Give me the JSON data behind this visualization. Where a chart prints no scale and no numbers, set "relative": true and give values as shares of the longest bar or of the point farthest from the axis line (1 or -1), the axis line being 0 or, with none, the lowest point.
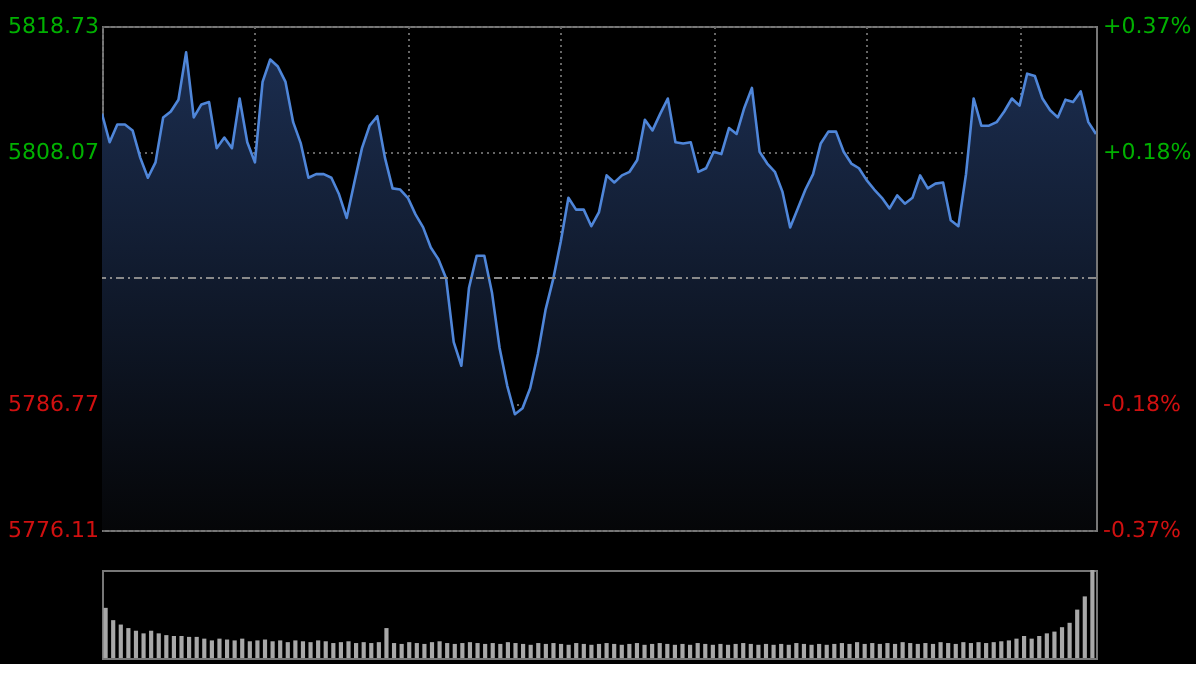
{
  "chart_data": [
    {
      "type": "area",
      "line_style": "solid",
      "marker": "none",
      "grid": true,
      "categories": [
        null,
        null,
        null,
        null,
        null,
        null,
        null,
        null,
        null,
        null,
        null,
        null,
        null,
        null,
        null,
        null,
        null,
        null,
        null,
        null,
        null,
        null,
        null,
        null,
        null,
        null,
        null,
        null,
        null,
        null,
        null,
        null,
        null,
        null,
        null,
        null,
        null,
        null,
        null,
        null,
        null,
        null,
        null,
        null,
        null,
        null,
        null,
        null,
        null,
        null,
        null,
        null,
        null,
        null,
        null,
        null,
        null,
        null,
        null,
        null,
        null,
        null,
        null,
        null,
        null,
        null,
        null,
        null,
        null,
        null,
        null,
        null,
        null,
        null,
        null,
        null,
        null,
        null,
        null,
        null,
        null,
        null,
        null,
        null,
        null,
        null,
        null,
        null,
        null,
        null,
        null,
        null,
        null,
        null,
        null,
        null,
        null,
        null,
        null,
        null,
        null,
        null,
        null,
        null,
        null,
        null,
        null,
        null,
        null,
        null,
        null,
        null,
        null,
        null,
        null,
        null,
        null,
        null,
        null,
        null,
        null,
        null,
        null,
        null,
        null,
        null,
        null,
        null,
        null,
        null,
        null
      ],
      "series": [
        {
          "color": "#4f86d9",
          "values": [
            5811.3,
            5808.9,
            5810.4,
            5810.4,
            5809.9,
            5807.6,
            5805.9,
            5807.2,
            5811.0,
            5811.5,
            5812.5,
            5816.5,
            5811.0,
            5812.1,
            5812.3,
            5808.4,
            5809.3,
            5808.4,
            5812.6,
            5808.9,
            5807.2,
            5814.0,
            5815.9,
            5815.3,
            5814.0,
            5810.6,
            5808.8,
            5805.9,
            5806.2,
            5806.2,
            5805.9,
            5804.5,
            5802.5,
            5805.5,
            5808.4,
            5810.3,
            5811.1,
            5807.6,
            5805.0,
            5804.9,
            5804.2,
            5802.8,
            5801.7,
            5800.0,
            5799.0,
            5797.4,
            5792.0,
            5790.0,
            5796.6,
            5799.3,
            5799.3,
            5796.2,
            5791.5,
            5788.3,
            5785.9,
            5786.4,
            5788.1,
            5791.0,
            5794.7,
            5797.3,
            5800.5,
            5804.2,
            5803.2,
            5803.2,
            5801.8,
            5803.0,
            5806.1,
            5805.5,
            5806.1,
            5806.4,
            5807.4,
            5810.8,
            5809.9,
            5811.3,
            5812.6,
            5808.9,
            5808.8,
            5808.9,
            5806.4,
            5806.7,
            5808.1,
            5807.9,
            5810.1,
            5809.6,
            5811.8,
            5813.5,
            5808.1,
            5807.1,
            5806.4,
            5804.7,
            5801.7,
            5803.3,
            5804.9,
            5806.2,
            5808.8,
            5809.8,
            5809.8,
            5808.1,
            5807.1,
            5806.7,
            5805.7,
            5804.9,
            5804.2,
            5803.3,
            5804.4,
            5803.7,
            5804.2,
            5806.1,
            5805.0,
            5805.4,
            5805.5,
            5802.3,
            5801.8,
            5806.2,
            5812.6,
            5810.3,
            5810.3,
            5810.6,
            5811.5,
            5812.6,
            5812.0,
            5814.7,
            5814.5,
            5812.6,
            5811.6,
            5811.0,
            5812.5,
            5812.3,
            5813.2,
            5810.6,
            5809.6
          ]
        }
      ],
      "ylim": [
        5776.11,
        5818.73
      ],
      "yticks": [
        5776.11,
        5786.77,
        5808.07,
        5818.73
      ],
      "y2lim": [
        -0.368,
        0.368
      ],
      "y2ticks": [
        {
          "value": -0.368,
          "label": "-0.37%"
        },
        {
          "value": -0.184,
          "label": "-0.18%"
        },
        {
          "value": 0.184,
          "label": "+0.18%"
        },
        {
          "value": 0.368,
          "label": "+0.37%"
        }
      ],
      "ref_lines": [
        {
          "axis": "y",
          "value": 5797.42,
          "line_style": "dashed",
          "color": "#8a8a8a"
        }
      ]
    },
    {
      "type": "bar",
      "relative": true,
      "categories": [
        null,
        null,
        null,
        null,
        null,
        null,
        null,
        null,
        null,
        null,
        null,
        null,
        null,
        null,
        null,
        null,
        null,
        null,
        null,
        null,
        null,
        null,
        null,
        null,
        null,
        null,
        null,
        null,
        null,
        null,
        null,
        null,
        null,
        null,
        null,
        null,
        null,
        null,
        null,
        null,
        null,
        null,
        null,
        null,
        null,
        null,
        null,
        null,
        null,
        null,
        null,
        null,
        null,
        null,
        null,
        null,
        null,
        null,
        null,
        null,
        null,
        null,
        null,
        null,
        null,
        null,
        null,
        null,
        null,
        null,
        null,
        null,
        null,
        null,
        null,
        null,
        null,
        null,
        null,
        null,
        null,
        null,
        null,
        null,
        null,
        null,
        null,
        null,
        null,
        null,
        null,
        null,
        null,
        null,
        null,
        null,
        null,
        null,
        null,
        null,
        null,
        null,
        null,
        null,
        null,
        null,
        null,
        null,
        null,
        null,
        null,
        null,
        null,
        null,
        null,
        null,
        null,
        null,
        null,
        null,
        null,
        null,
        null,
        null,
        null,
        null,
        null,
        null,
        null,
        null,
        null
      ],
      "series": [
        {
          "color": "#a8a8a8",
          "values": [
            0.57,
            0.43,
            0.38,
            0.34,
            0.31,
            0.28,
            0.31,
            0.28,
            0.26,
            0.25,
            0.25,
            0.24,
            0.24,
            0.22,
            0.2,
            0.22,
            0.21,
            0.2,
            0.22,
            0.19,
            0.2,
            0.21,
            0.19,
            0.2,
            0.18,
            0.2,
            0.19,
            0.18,
            0.2,
            0.19,
            0.17,
            0.18,
            0.19,
            0.17,
            0.18,
            0.17,
            0.18,
            0.34,
            0.17,
            0.16,
            0.18,
            0.17,
            0.16,
            0.18,
            0.19,
            0.17,
            0.16,
            0.17,
            0.18,
            0.17,
            0.16,
            0.17,
            0.16,
            0.18,
            0.17,
            0.16,
            0.15,
            0.17,
            0.16,
            0.17,
            0.16,
            0.15,
            0.17,
            0.16,
            0.15,
            0.16,
            0.17,
            0.16,
            0.15,
            0.16,
            0.17,
            0.15,
            0.16,
            0.17,
            0.16,
            0.15,
            0.16,
            0.15,
            0.17,
            0.16,
            0.15,
            0.16,
            0.15,
            0.16,
            0.17,
            0.16,
            0.15,
            0.16,
            0.15,
            0.16,
            0.15,
            0.17,
            0.16,
            0.15,
            0.16,
            0.15,
            0.16,
            0.17,
            0.16,
            0.18,
            0.16,
            0.17,
            0.16,
            0.17,
            0.16,
            0.18,
            0.17,
            0.16,
            0.17,
            0.16,
            0.18,
            0.17,
            0.16,
            0.18,
            0.17,
            0.18,
            0.17,
            0.18,
            0.19,
            0.2,
            0.22,
            0.25,
            0.22,
            0.25,
            0.28,
            0.3,
            0.35,
            0.4,
            0.55,
            0.7,
            1.0
          ]
        }
      ]
    }
  ]
}
